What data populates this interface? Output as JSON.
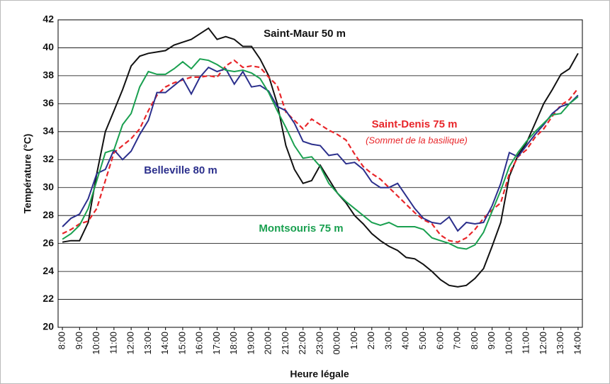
{
  "chart_data": {
    "type": "line",
    "ylabel": "Température (°C)",
    "xlabel": "Heure légale",
    "annotation": "(Sommet de la basilique)",
    "categories": [
      "8:00",
      null,
      "9:00",
      null,
      "10:00",
      null,
      "11:00",
      null,
      "12:00",
      null,
      "13:00",
      null,
      "14:00",
      null,
      "15:00",
      null,
      "16:00",
      null,
      "17:00",
      null,
      "18:00",
      null,
      "19:00",
      null,
      "20:00",
      null,
      "21:00",
      null,
      "22:00",
      null,
      "23:00",
      null,
      "00:00",
      null,
      "1:00",
      null,
      "2:00",
      null,
      "3:00",
      null,
      "4:00",
      null,
      "5:00",
      null,
      "6:00",
      null,
      "7:00",
      null,
      "8:00",
      null,
      "9:00",
      null,
      "10:00",
      null,
      "11:00",
      null,
      "12:00",
      null,
      "13:00",
      null,
      "14:00"
    ],
    "series": [
      {
        "name": "Saint-Maur 50 m",
        "color": "#111111",
        "dash": false,
        "values": [
          26.1,
          26.2,
          26.2,
          27.5,
          31,
          34,
          35.5,
          37,
          38.7,
          39.4,
          39.6,
          39.7,
          39.8,
          40.2,
          40.4,
          40.6,
          41.0,
          41.4,
          40.6,
          40.8,
          40.6,
          40.1,
          40.1,
          39.2,
          38,
          36,
          33,
          31.3,
          30.3,
          30.5,
          31.6,
          30.6,
          29.6,
          28.9,
          28,
          27.4,
          26.7,
          26.2,
          25.8,
          25.5,
          25,
          24.9,
          24.5,
          24,
          23.4,
          23,
          22.9,
          23,
          23.5,
          24.2,
          25.8,
          27.5,
          30.8,
          32.3,
          33.2,
          34.6,
          36,
          37,
          38.1,
          38.5,
          39.6
        ]
      },
      {
        "name": "Saint-Denis 75 m",
        "color": "#e8262a",
        "dash": true,
        "values": [
          26.7,
          27,
          27.4,
          27.6,
          28.5,
          30.5,
          32.5,
          33,
          33.5,
          34.2,
          35.5,
          36.6,
          37.2,
          37.5,
          37.7,
          37.9,
          37.9,
          38,
          37.9,
          38.7,
          39.1,
          38.6,
          38.7,
          38.6,
          37.9,
          37.3,
          35.4,
          34.8,
          34.2,
          34.9,
          34.5,
          34.1,
          33.8,
          33.4,
          32.4,
          31.5,
          31,
          30.6,
          30,
          29.4,
          28.8,
          28.2,
          27.7,
          27.4,
          26.6,
          26.2,
          26.1,
          26.4,
          27,
          27.8,
          28.4,
          28.9,
          31,
          32.2,
          32.7,
          33.6,
          34.2,
          35.1,
          35.9,
          36.3,
          37.1
        ]
      },
      {
        "name": "Belleville 80 m",
        "color": "#2b2f8c",
        "dash": false,
        "values": [
          27.2,
          27.8,
          28.1,
          29.2,
          31,
          31.3,
          32.7,
          32,
          32.6,
          33.8,
          34.8,
          36.8,
          36.8,
          37.3,
          37.8,
          36.7,
          37.9,
          38.6,
          38.3,
          38.5,
          37.4,
          38.3,
          37.2,
          37.3,
          36.9,
          35.8,
          35.5,
          34.6,
          33.3,
          33.1,
          33,
          32.3,
          32.4,
          31.7,
          31.8,
          31.3,
          30.4,
          30,
          30,
          30.3,
          29.4,
          28.5,
          27.8,
          27.5,
          27.4,
          27.9,
          26.9,
          27.5,
          27.4,
          27.5,
          28.7,
          30.3,
          32.5,
          32.2,
          33,
          33.8,
          34.5,
          35.3,
          35.8,
          36,
          36.6
        ]
      },
      {
        "name": "Montsouris 75 m",
        "color": "#1aa050",
        "dash": false,
        "values": [
          26.3,
          26.7,
          27.3,
          28.5,
          30.5,
          32.5,
          32.7,
          34.5,
          35.3,
          37.2,
          38.3,
          38.1,
          38.1,
          38.5,
          39,
          38.5,
          39.2,
          39.1,
          38.8,
          38.4,
          38.3,
          38.4,
          38.2,
          37.8,
          36.8,
          35.5,
          34.3,
          33,
          32.1,
          32.2,
          31.5,
          30.3,
          29.6,
          29,
          28.5,
          28,
          27.5,
          27.3,
          27.5,
          27.2,
          27.2,
          27.2,
          27,
          26.4,
          26.2,
          26,
          25.7,
          25.6,
          25.9,
          26.8,
          28.3,
          29.8,
          31.5,
          32.5,
          33.3,
          34,
          34.6,
          35.2,
          35.3,
          36,
          36.5
        ]
      }
    ],
    "ylim": [
      20,
      42
    ],
    "yticks": [
      20,
      22,
      24,
      26,
      28,
      30,
      32,
      34,
      36,
      38,
      40,
      42
    ],
    "grid": true
  }
}
